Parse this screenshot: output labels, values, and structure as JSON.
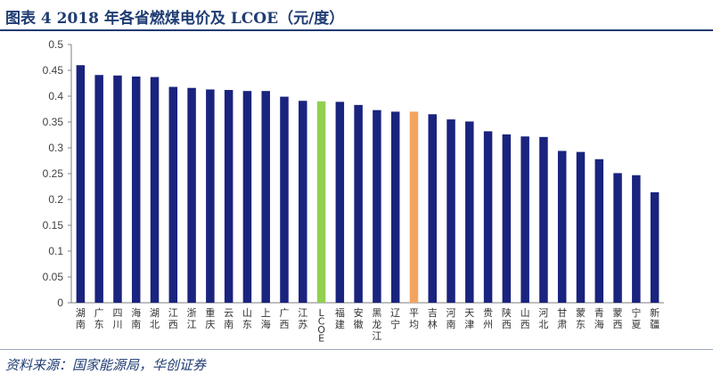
{
  "header": {
    "title": "图表 4 2018 年各省燃煤电价及 LCOE（元/度）"
  },
  "footer": {
    "source": "资料来源：国家能源局，华创证券"
  },
  "colors": {
    "default_bar": "#1a237e",
    "lcoe_bar": "#92d050",
    "average_bar": "#f4a460",
    "header": "#1f3c73"
  },
  "chart_data": {
    "type": "bar",
    "title": "",
    "xlabel": "",
    "ylabel": "",
    "ylim": [
      0,
      0.5
    ],
    "yticks": [
      "0",
      "0.05",
      "0.1",
      "0.15",
      "0.2",
      "0.25",
      "0.3",
      "0.35",
      "0.4",
      "0.45",
      "0.5"
    ],
    "grid": false,
    "legend": "none",
    "categories": [
      "湖南",
      "广东",
      "四川",
      "海南",
      "湖北",
      "江西",
      "浙江",
      "重庆",
      "云南",
      "山东",
      "上海",
      "广西",
      "江苏",
      "LCOE",
      "福建",
      "安徽",
      "黑龙江",
      "辽宁",
      "平均",
      "吉林",
      "河南",
      "天津",
      "贵州",
      "陕西",
      "山西",
      "河北",
      "甘肃",
      "蒙东",
      "青海",
      "蒙西",
      "宁夏",
      "新疆"
    ],
    "values": [
      0.46,
      0.441,
      0.44,
      0.438,
      0.437,
      0.418,
      0.416,
      0.413,
      0.412,
      0.41,
      0.41,
      0.399,
      0.391,
      0.39,
      0.389,
      0.383,
      0.373,
      0.37,
      0.37,
      0.365,
      0.355,
      0.351,
      0.332,
      0.326,
      0.322,
      0.321,
      0.294,
      0.292,
      0.278,
      0.251,
      0.247,
      0.214
    ],
    "highlight": {
      "LCOE": "lcoe_bar",
      "平均": "average_bar"
    }
  }
}
